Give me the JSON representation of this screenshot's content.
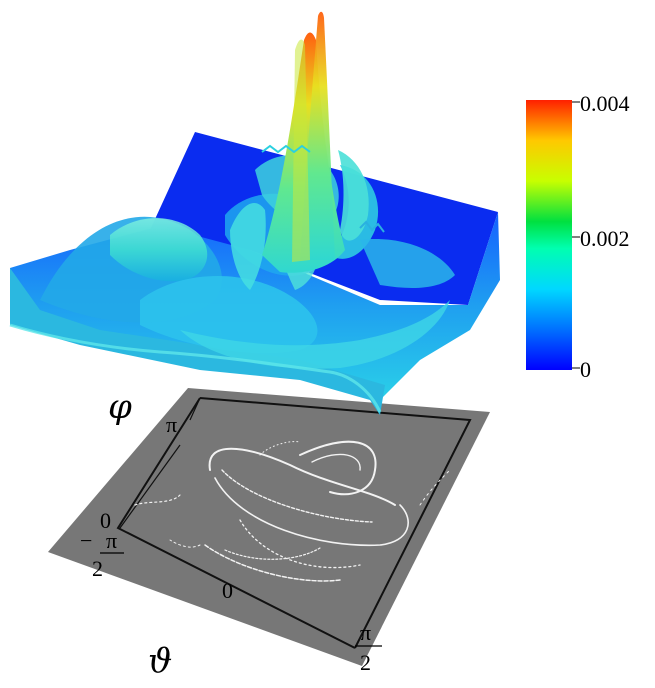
{
  "axes": {
    "vertical_symbol": "φ",
    "horizontal_symbol": "ϑ"
  },
  "phi_ticks": [
    "π",
    "0"
  ],
  "theta_ticks": {
    "left_minus": "−",
    "left_num": "π",
    "left_den": "2",
    "center": "0",
    "right_num": "π",
    "right_den": "2"
  },
  "colorbar": {
    "ticks": [
      "0.004",
      "0.002",
      "0"
    ],
    "range": [
      0,
      0.004
    ],
    "colors": [
      "#0000ff",
      "#00b4ff",
      "#00ffdc",
      "#00ff50",
      "#ffff00",
      "#ff8c00",
      "#ff2000"
    ]
  },
  "colors": {
    "floor": "#777777",
    "surface_base": "#1a6bff",
    "surface_high": "#22ccee",
    "peak": "#ffdd00"
  }
}
